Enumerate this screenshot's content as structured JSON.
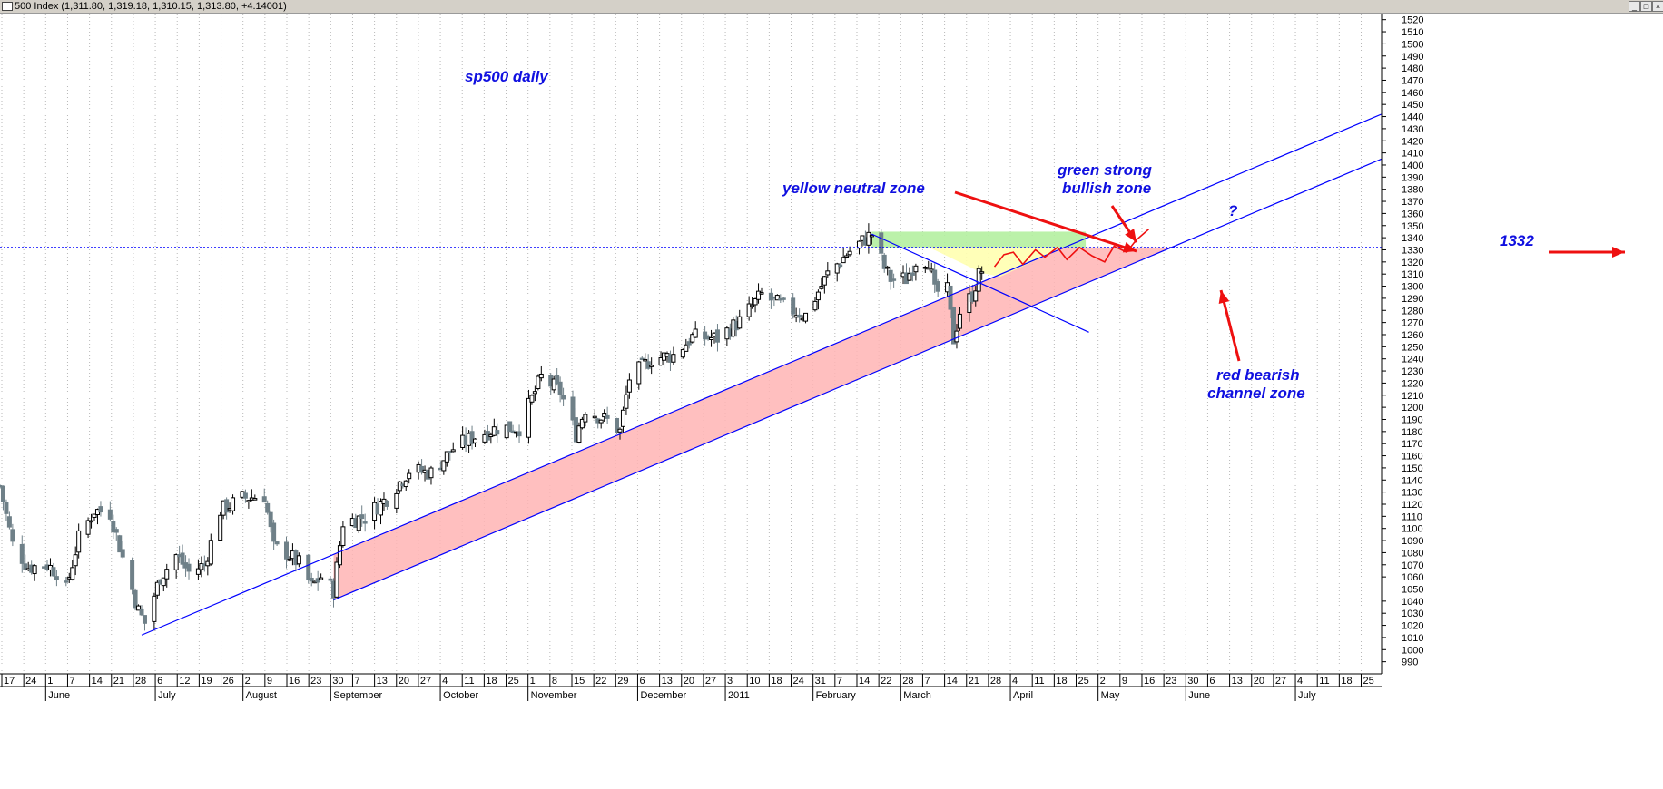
{
  "window": {
    "title": "500 Index (1,311.80, 1,319.18, 1,310.15, 1,313.80, +4.14001)",
    "buttons": [
      "_",
      "□",
      "×"
    ]
  },
  "colors": {
    "up_candle": "#000000",
    "down_candle": "#6f8088",
    "channel_line": "#0000ff",
    "red_zone": "#ffb4b4",
    "yellow_zone": "#ffffb0",
    "green_zone": "#b4f0a0",
    "arrow": "#ee1010",
    "projection": "#ee1010",
    "annotation_text": "#1010e0"
  },
  "chart_data": {
    "type": "candlestick",
    "ylim": [
      980,
      1525
    ],
    "yticks": [
      990,
      1000,
      1010,
      1020,
      1030,
      1040,
      1050,
      1060,
      1070,
      1080,
      1090,
      1100,
      1110,
      1120,
      1130,
      1140,
      1150,
      1160,
      1170,
      1180,
      1190,
      1200,
      1210,
      1220,
      1230,
      1240,
      1250,
      1260,
      1270,
      1280,
      1290,
      1300,
      1310,
      1320,
      1330,
      1340,
      1350,
      1360,
      1370,
      1380,
      1390,
      1400,
      1410,
      1420,
      1430,
      1440,
      1450,
      1460,
      1470,
      1480,
      1490,
      1500,
      1510,
      1520
    ],
    "day_ticks": [
      "17",
      "24",
      "1",
      "7",
      "14",
      "21",
      "28",
      "6",
      "12",
      "19",
      "26",
      "2",
      "9",
      "16",
      "23",
      "30",
      "7",
      "13",
      "20",
      "27",
      "4",
      "11",
      "18",
      "25",
      "1",
      "8",
      "15",
      "22",
      "29",
      "6",
      "13",
      "20",
      "27",
      "3",
      "10",
      "18",
      "24",
      "31",
      "7",
      "14",
      "22",
      "28",
      "7",
      "14",
      "21",
      "28",
      "4",
      "11",
      "18",
      "25",
      "2",
      "9",
      "16",
      "23",
      "30",
      "6",
      "13",
      "20",
      "27",
      "4",
      "11",
      "18",
      "25"
    ],
    "months": [
      {
        "label": "June",
        "day": "1"
      },
      {
        "label": "July",
        "day": "6"
      },
      {
        "label": "August",
        "day": "2"
      },
      {
        "label": "September",
        "day": "30"
      },
      {
        "label": "October",
        "day": "4"
      },
      {
        "label": "November",
        "day": "1"
      },
      {
        "label": "December",
        "day": "6"
      },
      {
        "label": "2011",
        "day": "3"
      },
      {
        "label": "February",
        "day": "31"
      },
      {
        "label": "March",
        "day": "28"
      },
      {
        "label": "April",
        "day": "4"
      },
      {
        "label": "May",
        "day": "2"
      },
      {
        "label": "June",
        "day": "30"
      },
      {
        "label": "July",
        "day": "4"
      }
    ],
    "date_range": [
      "2010-05-17",
      "2011-07-30"
    ],
    "daily_close_path": [
      [
        "2010-05-17",
        1135
      ],
      [
        "2010-05-21",
        1087
      ],
      [
        "2010-05-26",
        1068
      ],
      [
        "2010-06-01",
        1070
      ],
      [
        "2010-06-04",
        1064
      ],
      [
        "2010-06-07",
        1050
      ],
      [
        "2010-06-11",
        1092
      ],
      [
        "2010-06-16",
        1115
      ],
      [
        "2010-06-21",
        1113
      ],
      [
        "2010-06-25",
        1076
      ],
      [
        "2010-06-30",
        1032
      ],
      [
        "2010-07-02",
        1022
      ],
      [
        "2010-07-07",
        1060
      ],
      [
        "2010-07-12",
        1078
      ],
      [
        "2010-07-16",
        1064
      ],
      [
        "2010-07-21",
        1070
      ],
      [
        "2010-07-26",
        1115
      ],
      [
        "2010-08-02",
        1125
      ],
      [
        "2010-08-09",
        1127
      ],
      [
        "2010-08-12",
        1084
      ],
      [
        "2010-08-16",
        1080
      ],
      [
        "2010-08-20",
        1071
      ],
      [
        "2010-08-24",
        1052
      ],
      [
        "2010-08-27",
        1060
      ],
      [
        "2010-08-31",
        1049
      ],
      [
        "2010-09-03",
        1105
      ],
      [
        "2010-09-10",
        1110
      ],
      [
        "2010-09-17",
        1125
      ],
      [
        "2010-09-24",
        1148
      ],
      [
        "2010-10-01",
        1146
      ],
      [
        "2010-10-08",
        1166
      ],
      [
        "2010-10-15",
        1176
      ],
      [
        "2010-10-22",
        1183
      ],
      [
        "2010-10-29",
        1183
      ],
      [
        "2010-11-05",
        1225
      ],
      [
        "2010-11-11",
        1213
      ],
      [
        "2010-11-16",
        1178
      ],
      [
        "2010-11-19",
        1199
      ],
      [
        "2010-11-26",
        1189
      ],
      [
        "2010-11-30",
        1180
      ],
      [
        "2010-12-03",
        1224
      ],
      [
        "2010-12-10",
        1240
      ],
      [
        "2010-12-17",
        1243
      ],
      [
        "2010-12-23",
        1258
      ],
      [
        "2010-12-31",
        1257
      ],
      [
        "2011-01-07",
        1271
      ],
      [
        "2011-01-14",
        1293
      ],
      [
        "2011-01-21",
        1283
      ],
      [
        "2011-01-28",
        1276
      ],
      [
        "2011-02-04",
        1310
      ],
      [
        "2011-02-11",
        1329
      ],
      [
        "2011-02-18",
        1343
      ],
      [
        "2011-02-22",
        1315
      ],
      [
        "2011-02-24",
        1306
      ],
      [
        "2011-03-01",
        1306
      ],
      [
        "2011-03-04",
        1321
      ],
      [
        "2011-03-08",
        1322
      ],
      [
        "2011-03-10",
        1295
      ],
      [
        "2011-03-14",
        1296
      ],
      [
        "2011-03-16",
        1256
      ],
      [
        "2011-03-18",
        1279
      ],
      [
        "2011-03-22",
        1293
      ],
      [
        "2011-03-24",
        1309
      ],
      [
        "2011-03-25",
        1313
      ]
    ],
    "channel_lines": [
      {
        "name": "upper",
        "from": [
          "2010-07-01",
          1012
        ],
        "to": [
          "2011-07-30",
          1442
        ]
      },
      {
        "name": "lower",
        "from": [
          "2010-08-31",
          1041
        ],
        "to": [
          "2011-07-30",
          1405
        ]
      },
      {
        "name": "falling",
        "from": [
          "2011-02-18",
          1343
        ],
        "to": [
          "2011-04-28",
          1262
        ]
      }
    ],
    "zones": [
      {
        "name": "red bearish channel",
        "between": [
          "upper",
          "lower"
        ],
        "below": 1332
      },
      {
        "name": "yellow neutral",
        "from": 1311,
        "to": 1332,
        "dates": [
          "2011-03-14",
          "2011-04-20"
        ]
      },
      {
        "name": "green strong bullish",
        "from": 1332,
        "to": 1345,
        "dates": [
          "2011-02-18",
          "2011-04-27"
        ]
      }
    ],
    "hline": {
      "value": 1332,
      "label": "1332"
    }
  },
  "annotations": {
    "title": "sp500 daily",
    "yellow": "yellow neutral zone",
    "green_1": "green strong",
    "green_2": "bullish zone",
    "red_1": "red bearish",
    "red_2": "channel zone",
    "question": "?",
    "level": "1332"
  }
}
